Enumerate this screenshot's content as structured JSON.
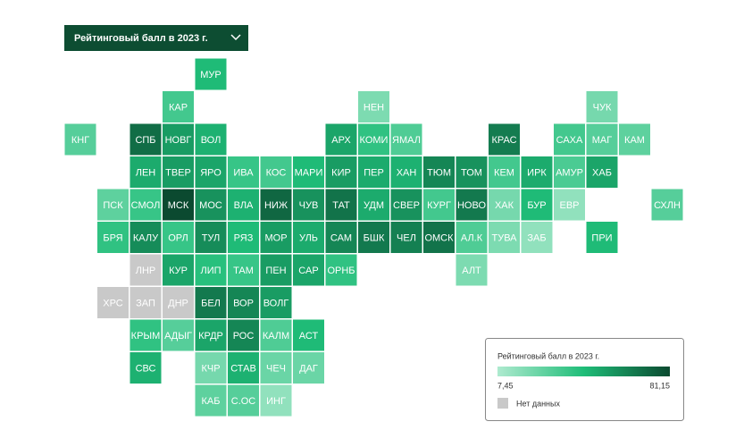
{
  "dropdown": "Рейтинговый балл в 2023 г.",
  "legend": {
    "title": "Рейтинговый балл в 2023 г.",
    "min": {
      "value": 7.45,
      "label": "7,45"
    },
    "max": {
      "value": 81.15,
      "label": "81,15"
    },
    "no_data": "Нет данных"
  },
  "colors": {
    "low": "#aeeacf",
    "mid": "#1fbd78",
    "high": "#0b4a30",
    "no_data": "#c9c9c9"
  },
  "regions": [
    {
      "label": "МУР",
      "value": 45
    },
    {
      "label": "КАР",
      "value": 35
    },
    {
      "label": "НЕН",
      "value": 20
    },
    {
      "label": "ЧУК",
      "value": 22
    },
    {
      "label": "КНГ",
      "value": 30
    },
    {
      "label": "СПБ",
      "value": 70
    },
    {
      "label": "НОВГ",
      "value": 55
    },
    {
      "label": "ВОЛ",
      "value": 48
    },
    {
      "label": "АРХ",
      "value": 52
    },
    {
      "label": "КОМИ",
      "value": 40
    },
    {
      "label": "ЯМАЛ",
      "value": 32
    },
    {
      "label": "КРАС",
      "value": 65
    },
    {
      "label": "САХА",
      "value": 35
    },
    {
      "label": "МАГ",
      "value": 30
    },
    {
      "label": "КАМ",
      "value": 28
    },
    {
      "label": "ЛЕН",
      "value": 50
    },
    {
      "label": "ТВЕР",
      "value": 55
    },
    {
      "label": "ЯРО",
      "value": 52
    },
    {
      "label": "ИВА",
      "value": 38
    },
    {
      "label": "КОС",
      "value": 35
    },
    {
      "label": "МАРИ",
      "value": 45
    },
    {
      "label": "КИР",
      "value": 55
    },
    {
      "label": "ПЕР",
      "value": 50
    },
    {
      "label": "ХАН",
      "value": 48
    },
    {
      "label": "ТЮМ",
      "value": 62
    },
    {
      "label": "ТОМ",
      "value": 58
    },
    {
      "label": "КЕМ",
      "value": 35
    },
    {
      "label": "ИРК",
      "value": 50
    },
    {
      "label": "АМУР",
      "value": 33
    },
    {
      "label": "ХАБ",
      "value": 52
    },
    {
      "label": "ПСК",
      "value": 28
    },
    {
      "label": "СМОЛ",
      "value": 38
    },
    {
      "label": "МСК",
      "value": 81
    },
    {
      "label": "МОС",
      "value": 58
    },
    {
      "label": "ВЛА",
      "value": 48
    },
    {
      "label": "НИЖ",
      "value": 72
    },
    {
      "label": "ЧУВ",
      "value": 58
    },
    {
      "label": "ТАТ",
      "value": 68
    },
    {
      "label": "УДМ",
      "value": 50
    },
    {
      "label": "СВЕР",
      "value": 58
    },
    {
      "label": "КУРГ",
      "value": 35
    },
    {
      "label": "НОВО",
      "value": 66
    },
    {
      "label": "ХАК",
      "value": 22
    },
    {
      "label": "БУР",
      "value": 45
    },
    {
      "label": "ЕВР",
      "value": 15
    },
    {
      "label": "СХЛН",
      "value": 30
    },
    {
      "label": "БРЯ",
      "value": 40
    },
    {
      "label": "КАЛУ",
      "value": 60
    },
    {
      "label": "ОРЛ",
      "value": 38
    },
    {
      "label": "ТУЛ",
      "value": 60
    },
    {
      "label": "РЯЗ",
      "value": 45
    },
    {
      "label": "МОР",
      "value": 55
    },
    {
      "label": "УЛЬ",
      "value": 50
    },
    {
      "label": "САМ",
      "value": 62
    },
    {
      "label": "БШК",
      "value": 66
    },
    {
      "label": "ЧЕЛ",
      "value": 64
    },
    {
      "label": "ОМСК",
      "value": 68
    },
    {
      "label": "АЛ.К",
      "value": 32
    },
    {
      "label": "ТУВА",
      "value": 20
    },
    {
      "label": "ЗАБ",
      "value": 15
    },
    {
      "label": "ПРИ",
      "value": 45
    },
    {
      "label": "ЛНР",
      "value": null
    },
    {
      "label": "КУР",
      "value": 52
    },
    {
      "label": "ЛИП",
      "value": 42
    },
    {
      "label": "ТАМ",
      "value": 38
    },
    {
      "label": "ПЕН",
      "value": 55
    },
    {
      "label": "САР",
      "value": 52
    },
    {
      "label": "ОРНБ",
      "value": 40
    },
    {
      "label": "АЛТ",
      "value": 20
    },
    {
      "label": "ХРС",
      "value": null
    },
    {
      "label": "ЗАП",
      "value": null
    },
    {
      "label": "ДНР",
      "value": null
    },
    {
      "label": "БЕЛ",
      "value": 66
    },
    {
      "label": "ВОР",
      "value": 62
    },
    {
      "label": "ВОЛГ",
      "value": 55
    },
    {
      "label": "КРЫМ",
      "value": 40
    },
    {
      "label": "АДЫГ",
      "value": 30
    },
    {
      "label": "КРДР",
      "value": 52
    },
    {
      "label": "РОС",
      "value": 62
    },
    {
      "label": "КАЛМ",
      "value": 32
    },
    {
      "label": "АСТ",
      "value": 45
    },
    {
      "label": "СВС",
      "value": 48
    },
    {
      "label": "КЧР",
      "value": 22
    },
    {
      "label": "СТАВ",
      "value": 48
    },
    {
      "label": "ЧЕЧ",
      "value": 25
    },
    {
      "label": "ДАГ",
      "value": 25
    },
    {
      "label": "КАБ",
      "value": 28
    },
    {
      "label": "С.ОС",
      "value": 30
    },
    {
      "label": "ИНГ",
      "value": 15
    }
  ]
}
